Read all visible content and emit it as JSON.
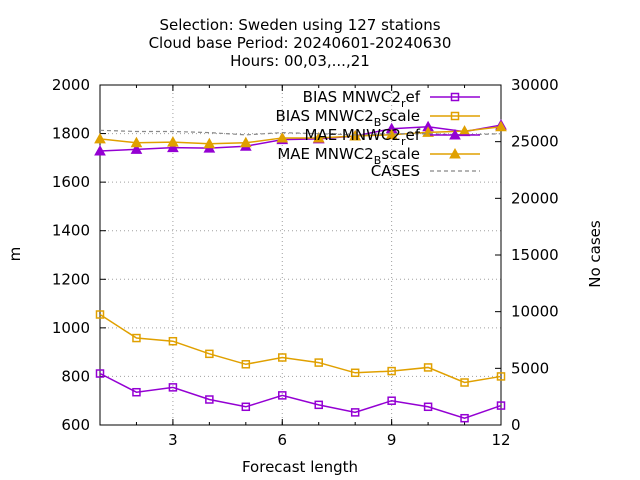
{
  "title": {
    "line1": "Selection: Sweden using   127 stations",
    "line2": "Cloud base   Period: 20240601-20240630",
    "line3": "Hours: 00,03,...,21"
  },
  "chart_data": {
    "type": "line",
    "xlabel": "Forecast length",
    "ylabel": "m",
    "y2label": "No cases",
    "xlim": [
      1,
      12
    ],
    "ylim": [
      600,
      2000
    ],
    "y2lim": [
      0,
      30000
    ],
    "xticks": [
      "3",
      "6",
      "9",
      "12"
    ],
    "yticks": [
      "600",
      "800",
      "1000",
      "1200",
      "1400",
      "1600",
      "1800",
      "2000"
    ],
    "y2ticks": [
      "0",
      "5000",
      "10000",
      "15000",
      "20000",
      "25000",
      "30000"
    ],
    "grid": true,
    "legend_position": "top-right",
    "x": [
      1,
      2,
      3,
      4,
      5,
      6,
      7,
      8,
      9,
      10,
      11,
      12
    ],
    "series": [
      {
        "name": "BIAS MNWC2_ref",
        "legend_main": "BIAS MNWC2",
        "legend_sub": "r",
        "legend_tail": "ef",
        "color": "#9400d3",
        "marker": "square",
        "axis": "y",
        "values": [
          812,
          735,
          755,
          705,
          675,
          722,
          683,
          652,
          700,
          675,
          628,
          680
        ]
      },
      {
        "name": "BIAS MNWC2_Bscale",
        "legend_main": "BIAS MNWC2",
        "legend_sub": "B",
        "legend_tail": "scale",
        "color": "#e0a000",
        "marker": "square",
        "axis": "y",
        "values": [
          1055,
          958,
          945,
          893,
          850,
          878,
          857,
          815,
          822,
          837,
          775,
          800
        ]
      },
      {
        "name": "MAE MNWC2_ref",
        "legend_main": "MAE MNWC2",
        "legend_sub": "r",
        "legend_tail": "ef",
        "color": "#9400d3",
        "marker": "triangle",
        "axis": "y",
        "values": [
          1728,
          1735,
          1742,
          1740,
          1748,
          1775,
          1778,
          1790,
          1820,
          1828,
          1808,
          1835
        ]
      },
      {
        "name": "MAE MNWC2_Bscale",
        "legend_main": "MAE MNWC2",
        "legend_sub": "B",
        "legend_tail": "scale",
        "color": "#e0a000",
        "marker": "triangle",
        "axis": "y",
        "values": [
          1778,
          1762,
          1765,
          1758,
          1762,
          1782,
          1782,
          1790,
          1795,
          1805,
          1810,
          1828
        ]
      },
      {
        "name": "CASES",
        "legend_main": "CASES",
        "legend_sub": "",
        "legend_tail": "",
        "color": "#888888",
        "marker": "none",
        "axis": "y2",
        "dashed": true,
        "values": [
          26000,
          25900,
          25900,
          25800,
          25600,
          25800,
          25700,
          25600,
          25700,
          25700,
          25600,
          25700
        ]
      }
    ]
  }
}
